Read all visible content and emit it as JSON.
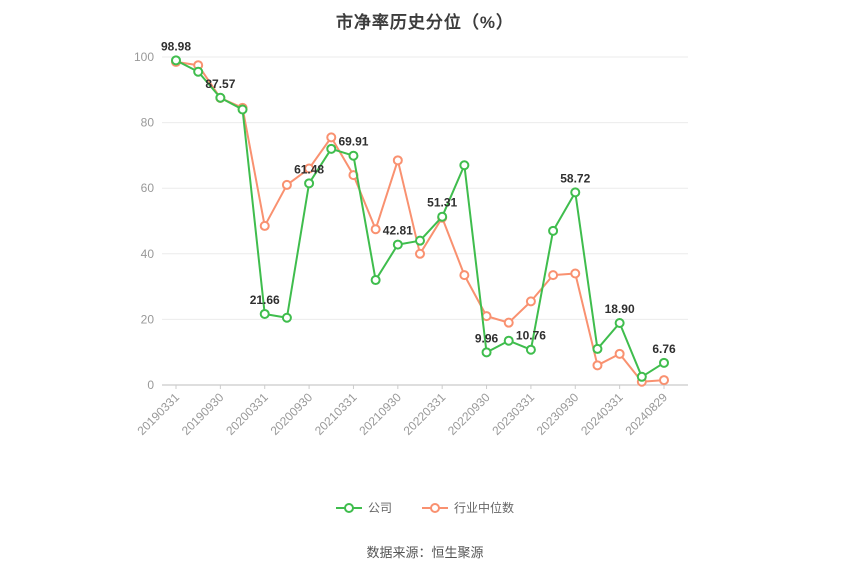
{
  "title": "市净率历史分位（%）",
  "footer": "数据来源：恒生聚源",
  "legend": [
    {
      "label": "公司",
      "color": "#3fbd4d"
    },
    {
      "label": "行业中位数",
      "color": "#f99170"
    }
  ],
  "chart_data": {
    "type": "line",
    "title": "市净率历史分位（%）",
    "xlabel": "",
    "ylabel": "",
    "ylim": [
      0,
      100
    ],
    "y_ticks": [
      0,
      20,
      40,
      60,
      80,
      100
    ],
    "grid": true,
    "legend_position": "bottom",
    "x_tick_labels": [
      {
        "index": 0,
        "label": "20190331"
      },
      {
        "index": 2,
        "label": "20190930"
      },
      {
        "index": 4,
        "label": "20200331"
      },
      {
        "index": 6,
        "label": "20200930"
      },
      {
        "index": 8,
        "label": "20210331"
      },
      {
        "index": 10,
        "label": "20210930"
      },
      {
        "index": 12,
        "label": "20220331"
      },
      {
        "index": 14,
        "label": "20220930"
      },
      {
        "index": 16,
        "label": "20230331"
      },
      {
        "index": 18,
        "label": "20230930"
      },
      {
        "index": 20,
        "label": "20240331"
      },
      {
        "index": 22,
        "label": "20240829"
      }
    ],
    "series": [
      {
        "name": "公司",
        "color": "#3fbd4d",
        "values": [
          98.98,
          95.5,
          87.57,
          84.0,
          21.66,
          20.5,
          61.48,
          72.0,
          69.91,
          32.0,
          42.81,
          44.0,
          51.31,
          67.0,
          9.96,
          13.5,
          10.76,
          47.0,
          58.72,
          11.0,
          18.9,
          2.5,
          6.76
        ],
        "point_labels": [
          {
            "index": 0,
            "text": "98.98"
          },
          {
            "index": 2,
            "text": "87.57"
          },
          {
            "index": 4,
            "text": "21.66"
          },
          {
            "index": 6,
            "text": "61.48"
          },
          {
            "index": 8,
            "text": "69.91"
          },
          {
            "index": 10,
            "text": "42.81"
          },
          {
            "index": 12,
            "text": "51.31"
          },
          {
            "index": 14,
            "text": "9.96"
          },
          {
            "index": 16,
            "text": "10.76"
          },
          {
            "index": 18,
            "text": "58.72"
          },
          {
            "index": 20,
            "text": "18.90"
          },
          {
            "index": 22,
            "text": "6.76"
          }
        ]
      },
      {
        "name": "行业中位数",
        "color": "#f99170",
        "values": [
          98.5,
          97.5,
          87.5,
          84.5,
          48.5,
          61.0,
          66.0,
          75.5,
          64.0,
          47.5,
          68.5,
          40.0,
          51.0,
          33.5,
          21.0,
          19.0,
          25.5,
          33.5,
          34.0,
          6.0,
          9.5,
          1.0,
          1.5
        ],
        "point_labels": []
      }
    ]
  }
}
